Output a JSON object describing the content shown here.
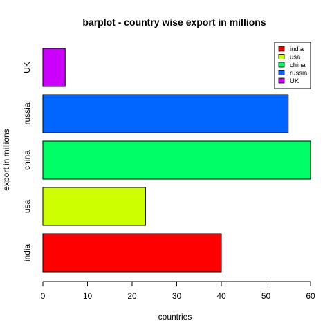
{
  "chart_data": {
    "type": "bar",
    "orientation": "horizontal",
    "title": "barplot - country wise export in millions",
    "xlabel": "countries",
    "ylabel": "export in millions",
    "categories": [
      "india",
      "usa",
      "china",
      "russia",
      "UK"
    ],
    "values": [
      40,
      23,
      60,
      55,
      5
    ],
    "colors": [
      "#ff0000",
      "#ccff00",
      "#00ff66",
      "#0066ff",
      "#cc00ff"
    ],
    "xlim": [
      0,
      60
    ],
    "xticks": [
      0,
      10,
      20,
      30,
      40,
      50,
      60
    ],
    "grid": false,
    "legend_position": "top-right",
    "legend": [
      {
        "label": "india",
        "color": "#ff0000"
      },
      {
        "label": "usa",
        "color": "#ccff00"
      },
      {
        "label": "china",
        "color": "#00ff66"
      },
      {
        "label": "russia",
        "color": "#0066ff"
      },
      {
        "label": "UK",
        "color": "#cc00ff"
      }
    ]
  }
}
